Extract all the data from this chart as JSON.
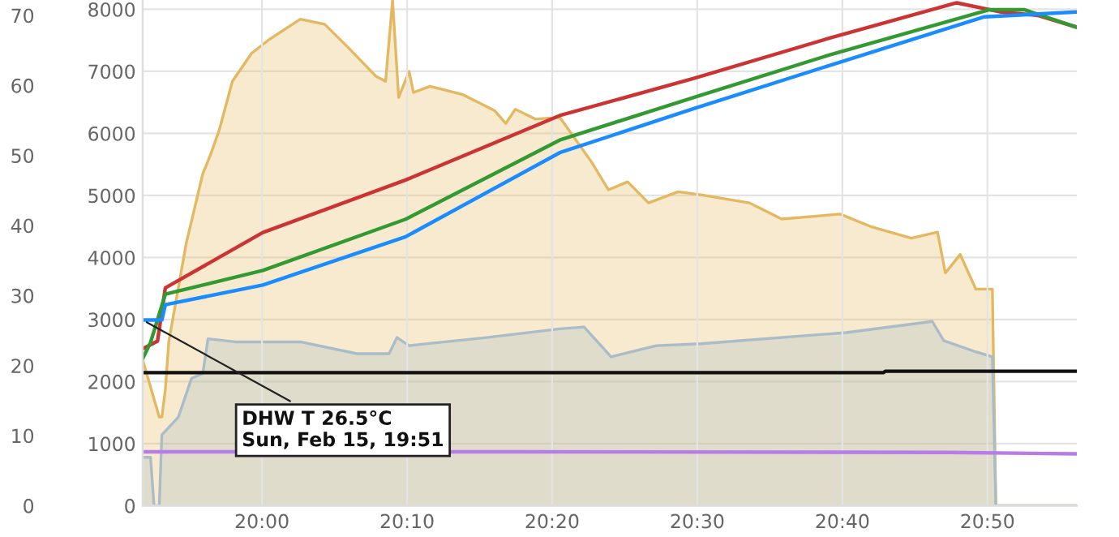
{
  "chart_data": {
    "type": "line",
    "xlim": [
      19.863,
      20.936
    ],
    "xticks": [
      {
        "value": 20.0,
        "label": "20:00"
      },
      {
        "value": 20.1667,
        "label": "20:10"
      },
      {
        "value": 20.3333,
        "label": "20:20"
      },
      {
        "value": 20.5,
        "label": "20:30"
      },
      {
        "value": 20.6667,
        "label": "20:40"
      },
      {
        "value": 20.8333,
        "label": "20:50"
      }
    ],
    "ylim": [
      0,
      72.2
    ],
    "yticks": [
      0,
      10,
      20,
      30,
      40,
      50,
      60,
      70
    ],
    "y2lim": [
      0,
      8150
    ],
    "y2ticks": [
      0,
      1000,
      2000,
      3000,
      4000,
      5000,
      6000,
      7000,
      8000
    ],
    "grid": true,
    "line_style": "solid",
    "annotations": [
      {
        "text": "DHW T 26.5°C\nSun, Feb 15, 19:51",
        "x": 19.863,
        "y": 26.5
      }
    ],
    "series": [
      {
        "type": "area",
        "axis": "y2",
        "color": "#e3b860",
        "x": [
          19.863,
          19.882,
          19.885,
          19.889,
          19.893,
          19.913,
          19.932,
          19.941,
          19.951,
          19.966,
          19.988,
          20.007,
          20.044,
          20.072,
          20.1,
          20.131,
          20.142,
          20.15,
          20.157,
          20.169,
          20.174,
          20.193,
          20.23,
          20.267,
          20.28,
          20.291,
          20.314,
          20.342,
          20.379,
          20.398,
          20.42,
          20.444,
          20.478,
          20.504,
          20.56,
          20.597,
          20.64,
          20.664,
          20.701,
          20.746,
          20.776,
          20.785,
          20.802,
          20.82,
          20.839,
          20.843,
          20.936
        ],
        "values": [
          2350,
          1430,
          1430,
          1870,
          2650,
          4230,
          5350,
          5660,
          6060,
          6840,
          7290,
          7500,
          7840,
          7760,
          7370,
          6920,
          6840,
          8150,
          6580,
          7000,
          6660,
          6760,
          6630,
          6370,
          6160,
          6390,
          6230,
          6260,
          5530,
          5090,
          5220,
          4880,
          5060,
          5010,
          4880,
          4620,
          4670,
          4700,
          4490,
          4310,
          4410,
          3750,
          4050,
          3490,
          3490,
          0,
          0
        ]
      },
      {
        "type": "area",
        "axis": "y2",
        "color": "#a9bcc8",
        "x": [
          19.863,
          19.872,
          19.876,
          19.882,
          19.885,
          19.904,
          19.919,
          19.932,
          19.938,
          19.969,
          20.044,
          20.109,
          20.146,
          20.155,
          20.169,
          20.258,
          20.342,
          20.37,
          20.401,
          20.453,
          20.504,
          20.671,
          20.77,
          20.783,
          20.82,
          20.839,
          20.843,
          20.859,
          20.936
        ],
        "values": [
          780,
          780,
          0,
          0,
          1140,
          1430,
          2050,
          2130,
          2690,
          2640,
          2640,
          2450,
          2450,
          2710,
          2580,
          2710,
          2850,
          2880,
          2400,
          2580,
          2610,
          2790,
          2970,
          2660,
          2480,
          2400,
          0,
          0,
          0
        ]
      },
      {
        "color": "#b77ce8",
        "x": [
          19.863,
          20.295,
          20.789,
          20.936
        ],
        "values": [
          7.7,
          7.7,
          7.6,
          7.4
        ]
      },
      {
        "color": "#111111",
        "x": [
          19.863,
          20.714,
          20.716,
          20.936
        ],
        "values": [
          19.0,
          19.0,
          19.2,
          19.2
        ]
      },
      {
        "color": "#cc3333",
        "x": [
          19.863,
          19.88,
          19.889,
          20.001,
          20.165,
          20.342,
          20.496,
          20.653,
          20.798,
          20.848,
          20.891,
          20.936
        ],
        "values": [
          22.4,
          23.5,
          31.1,
          39.0,
          46.5,
          55.7,
          61.0,
          66.8,
          71.8,
          70.5,
          70.0,
          68.3
        ]
      },
      {
        "color": "#339933",
        "x": [
          19.863,
          19.872,
          19.889,
          20.001,
          20.165,
          20.342,
          20.496,
          20.653,
          20.835,
          20.876,
          20.936
        ],
        "values": [
          21.0,
          23.3,
          30.2,
          33.6,
          40.9,
          52.2,
          58.3,
          64.4,
          70.8,
          70.8,
          68.3
        ]
      },
      {
        "color": "#1a8cff",
        "x": [
          19.863,
          19.885,
          19.889,
          20.001,
          20.165,
          20.342,
          20.496,
          20.653,
          20.83,
          20.936
        ],
        "values": [
          26.5,
          26.5,
          28.7,
          31.5,
          38.4,
          50.4,
          56.7,
          62.9,
          69.8,
          70.5
        ]
      }
    ]
  }
}
